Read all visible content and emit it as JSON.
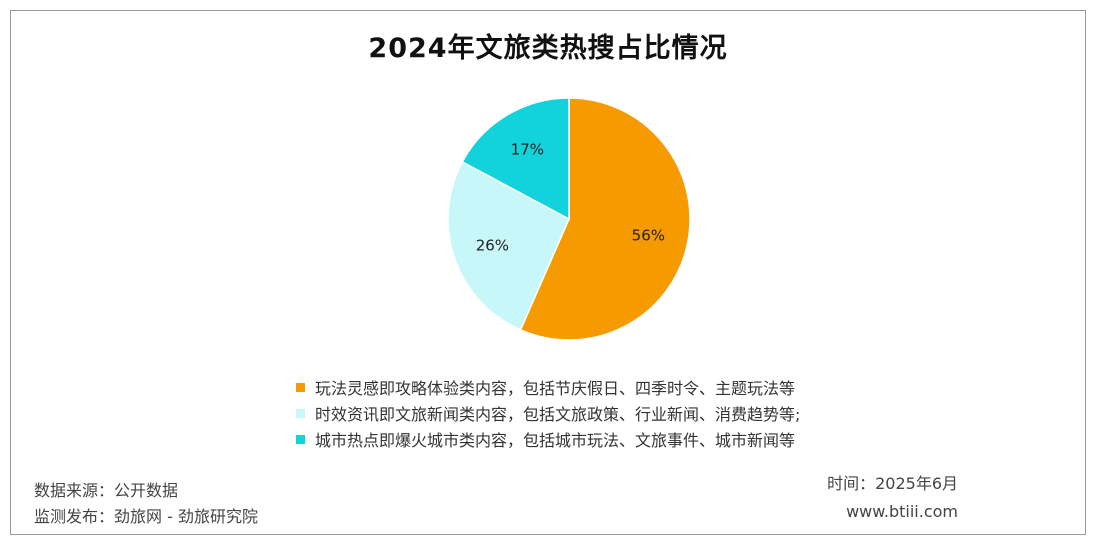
{
  "chart_data": {
    "type": "pie",
    "title": "2024年文旅类热搜占比情况",
    "slices": [
      {
        "label": "玩法灵感即攻略体验类内容，包括节庆假日、四季时令、主题玩法等",
        "value": 56,
        "display": "56%",
        "color": "#f59a00"
      },
      {
        "label": "时效资讯即文旅新闻类内容，包括文旅政策、行业新闻、消费趋势等;",
        "value": 26,
        "display": "26%",
        "color": "#c8f7fa"
      },
      {
        "label": "城市热点即爆火城市类内容，包括城市玩法、文旅事件、城市新闻等",
        "value": 17,
        "display": "17%",
        "color": "#12d2db"
      }
    ],
    "legend_position": "bottom"
  },
  "footer": {
    "source": "数据来源：公开数据",
    "publisher": "监测发布：劲旅网 - 劲旅研究院",
    "time": "时间：2025年6月",
    "website": "www.btiii.com"
  }
}
